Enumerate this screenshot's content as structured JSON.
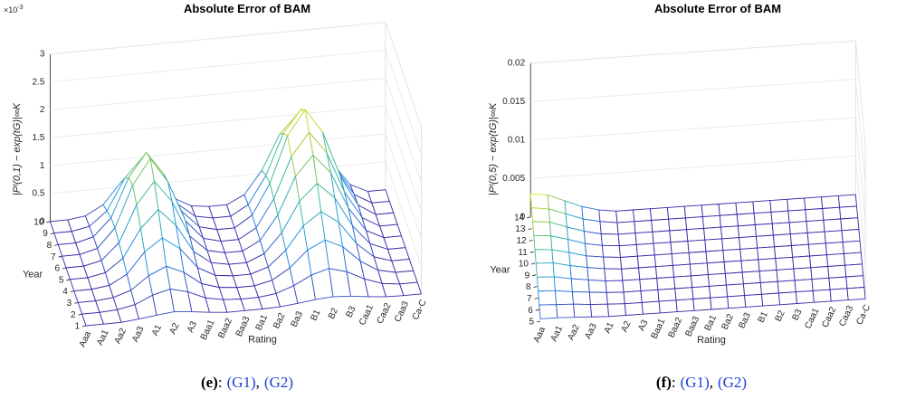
{
  "chart_data": [
    {
      "type": "surface",
      "title": "Absolute Error of BAM",
      "xlabel": "Rating",
      "ylabel": "Year",
      "zlabel": "|Pᵗ(0,1) − exp(tG)|∞K",
      "multiplier": {
        "base": "×10",
        "exponent": "-3"
      },
      "categories": [
        "Aaa",
        "Aa1",
        "Aa2",
        "Aa3",
        "A1",
        "A2",
        "A3",
        "Baa1",
        "Baa2",
        "Baa3",
        "Ba1",
        "Ba2",
        "Ba3",
        "B1",
        "B2",
        "B3",
        "Caa1",
        "Caa2",
        "Caa3",
        "Ca-C"
      ],
      "years": [
        1,
        2,
        3,
        4,
        5,
        6,
        7,
        8,
        9,
        10
      ],
      "values": [
        [
          0,
          0,
          0,
          0.03,
          0.07,
          0.1,
          0.07,
          0.03,
          0,
          0,
          0,
          0.01,
          0.04,
          0.08,
          0.1,
          0.08,
          0.04,
          0.01,
          0,
          0
        ],
        [
          0,
          0,
          0.02,
          0.08,
          0.22,
          0.3,
          0.22,
          0.08,
          0.02,
          0,
          0,
          0.04,
          0.15,
          0.31,
          0.4,
          0.31,
          0.15,
          0.04,
          0,
          0
        ],
        [
          0,
          0,
          0.03,
          0.13,
          0.36,
          0.5,
          0.36,
          0.13,
          0.03,
          0,
          0,
          0.07,
          0.26,
          0.55,
          0.7,
          0.55,
          0.26,
          0.07,
          0,
          0
        ],
        [
          0,
          0,
          0.04,
          0.21,
          0.58,
          0.8,
          0.58,
          0.21,
          0.04,
          0,
          0,
          0.1,
          0.37,
          0.78,
          1,
          0.78,
          0.37,
          0.1,
          0,
          0
        ],
        [
          0,
          0,
          0.06,
          0.29,
          0.79,
          1.1,
          0.79,
          0.29,
          0.06,
          0,
          0,
          0.13,
          0.48,
          1.01,
          1.3,
          1.01,
          0.48,
          0.13,
          0,
          0
        ],
        [
          0,
          0,
          0.07,
          0.36,
          1.01,
          1.4,
          1.01,
          0.36,
          0.07,
          0,
          0,
          0.16,
          0.59,
          1.25,
          1.6,
          1.25,
          0.59,
          0.16,
          0,
          0
        ],
        [
          0,
          0,
          0.08,
          0.42,
          1.15,
          1.6,
          1.15,
          0.42,
          0.08,
          0,
          0,
          0.18,
          0.67,
          1.4,
          1.8,
          1.4,
          0.67,
          0.18,
          0,
          0
        ],
        [
          0,
          0,
          0.08,
          0.39,
          1.08,
          1.5,
          1.08,
          0.39,
          0.08,
          0,
          0,
          0.2,
          0.74,
          1.56,
          2,
          1.56,
          0.74,
          0.2,
          0,
          0
        ],
        [
          0,
          0,
          0.06,
          0.31,
          0.86,
          1.2,
          0.86,
          0.31,
          0.06,
          0,
          0,
          0.18,
          0.67,
          1.4,
          1.8,
          1.4,
          0.67,
          0.18,
          0,
          0
        ],
        [
          0,
          0,
          0.04,
          0.21,
          0.58,
          0.8,
          0.58,
          0.21,
          0.04,
          0,
          0,
          0.15,
          0.56,
          1.17,
          1.5,
          1.17,
          0.56,
          0.15,
          0,
          0
        ]
      ],
      "zlim": [
        0,
        3
      ],
      "zticks": [
        0,
        0.5,
        1,
        1.5,
        2,
        2.5,
        3
      ],
      "caption": {
        "label": "(e)",
        "sep": ":",
        "refs": [
          "(G1)",
          "(G2)"
        ],
        "ref_sep": ","
      }
    },
    {
      "type": "surface",
      "title": "Absolute Error of BAM",
      "xlabel": "Rating",
      "ylabel": "Year",
      "zlabel": "|Pᵗ(0,5) − exp(tG)|∞K",
      "categories": [
        "Aaa",
        "Aa1",
        "Aa2",
        "Aa3",
        "A1",
        "A2",
        "A3",
        "Baa1",
        "Baa2",
        "Baa3",
        "Ba1",
        "Ba2",
        "Ba3",
        "B1",
        "B2",
        "B3",
        "Caa1",
        "Caa2",
        "Caa3",
        "Ca-C"
      ],
      "years": [
        5,
        6,
        7,
        8,
        9,
        10,
        11,
        12,
        13,
        14
      ],
      "values": [
        [
          0.0003,
          0.0003,
          0.0002,
          0.0001,
          0,
          0,
          0,
          0,
          0,
          0,
          0,
          0,
          0,
          0,
          0,
          0,
          0,
          0,
          0,
          0
        ],
        [
          0.0006,
          0.0005,
          0.0004,
          0.0002,
          0.0001,
          0,
          0,
          0,
          0,
          0,
          0,
          0,
          0,
          0,
          0,
          0,
          0,
          0,
          0,
          0
        ],
        [
          0.0009,
          0.0008,
          0.0005,
          0.0003,
          0.0001,
          0,
          0,
          0,
          0,
          0,
          0,
          0,
          0,
          0,
          0,
          0,
          0,
          0,
          0,
          0
        ],
        [
          0.0012,
          0.0011,
          0.0007,
          0.0004,
          0.0001,
          0,
          0,
          0,
          0,
          0,
          0,
          0,
          0,
          0,
          0,
          0,
          0,
          0,
          0,
          0
        ],
        [
          0.0015,
          0.0014,
          0.0009,
          0.0005,
          0.0002,
          0,
          0,
          0,
          0,
          0,
          0,
          0,
          0,
          0,
          0,
          0,
          0,
          0,
          0,
          0
        ],
        [
          0.0018,
          0.0016,
          0.0011,
          0.0005,
          0.0002,
          0,
          0,
          0,
          0,
          0,
          0,
          0,
          0,
          0,
          0,
          0,
          0,
          0,
          0,
          0
        ],
        [
          0.0021,
          0.0019,
          0.0013,
          0.0006,
          0.0002,
          0,
          0,
          0,
          0,
          0,
          0,
          0,
          0,
          0,
          0,
          0,
          0,
          0,
          0,
          0
        ],
        [
          0.0024,
          0.0022,
          0.0014,
          0.0007,
          0.0002,
          0,
          0,
          0,
          0,
          0,
          0,
          0,
          0,
          0,
          0,
          0,
          0,
          0,
          0,
          0
        ],
        [
          0.0027,
          0.0024,
          0.0016,
          0.0008,
          0.0003,
          0,
          0,
          0,
          0,
          0,
          0,
          0,
          0,
          0,
          0,
          0,
          0,
          0,
          0,
          0
        ],
        [
          0.003,
          0.0027,
          0.0018,
          0.0009,
          0.0003,
          0,
          0,
          0,
          0,
          0,
          0,
          0,
          0,
          0,
          0,
          0,
          0,
          0,
          0,
          0
        ]
      ],
      "zlim": [
        0,
        0.02
      ],
      "zticks": [
        0,
        0.005,
        0.01,
        0.015,
        0.02
      ],
      "caption": {
        "label": "(f)",
        "sep": ":",
        "refs": [
          "(G1)",
          "(G2)"
        ],
        "ref_sep": ","
      }
    }
  ]
}
